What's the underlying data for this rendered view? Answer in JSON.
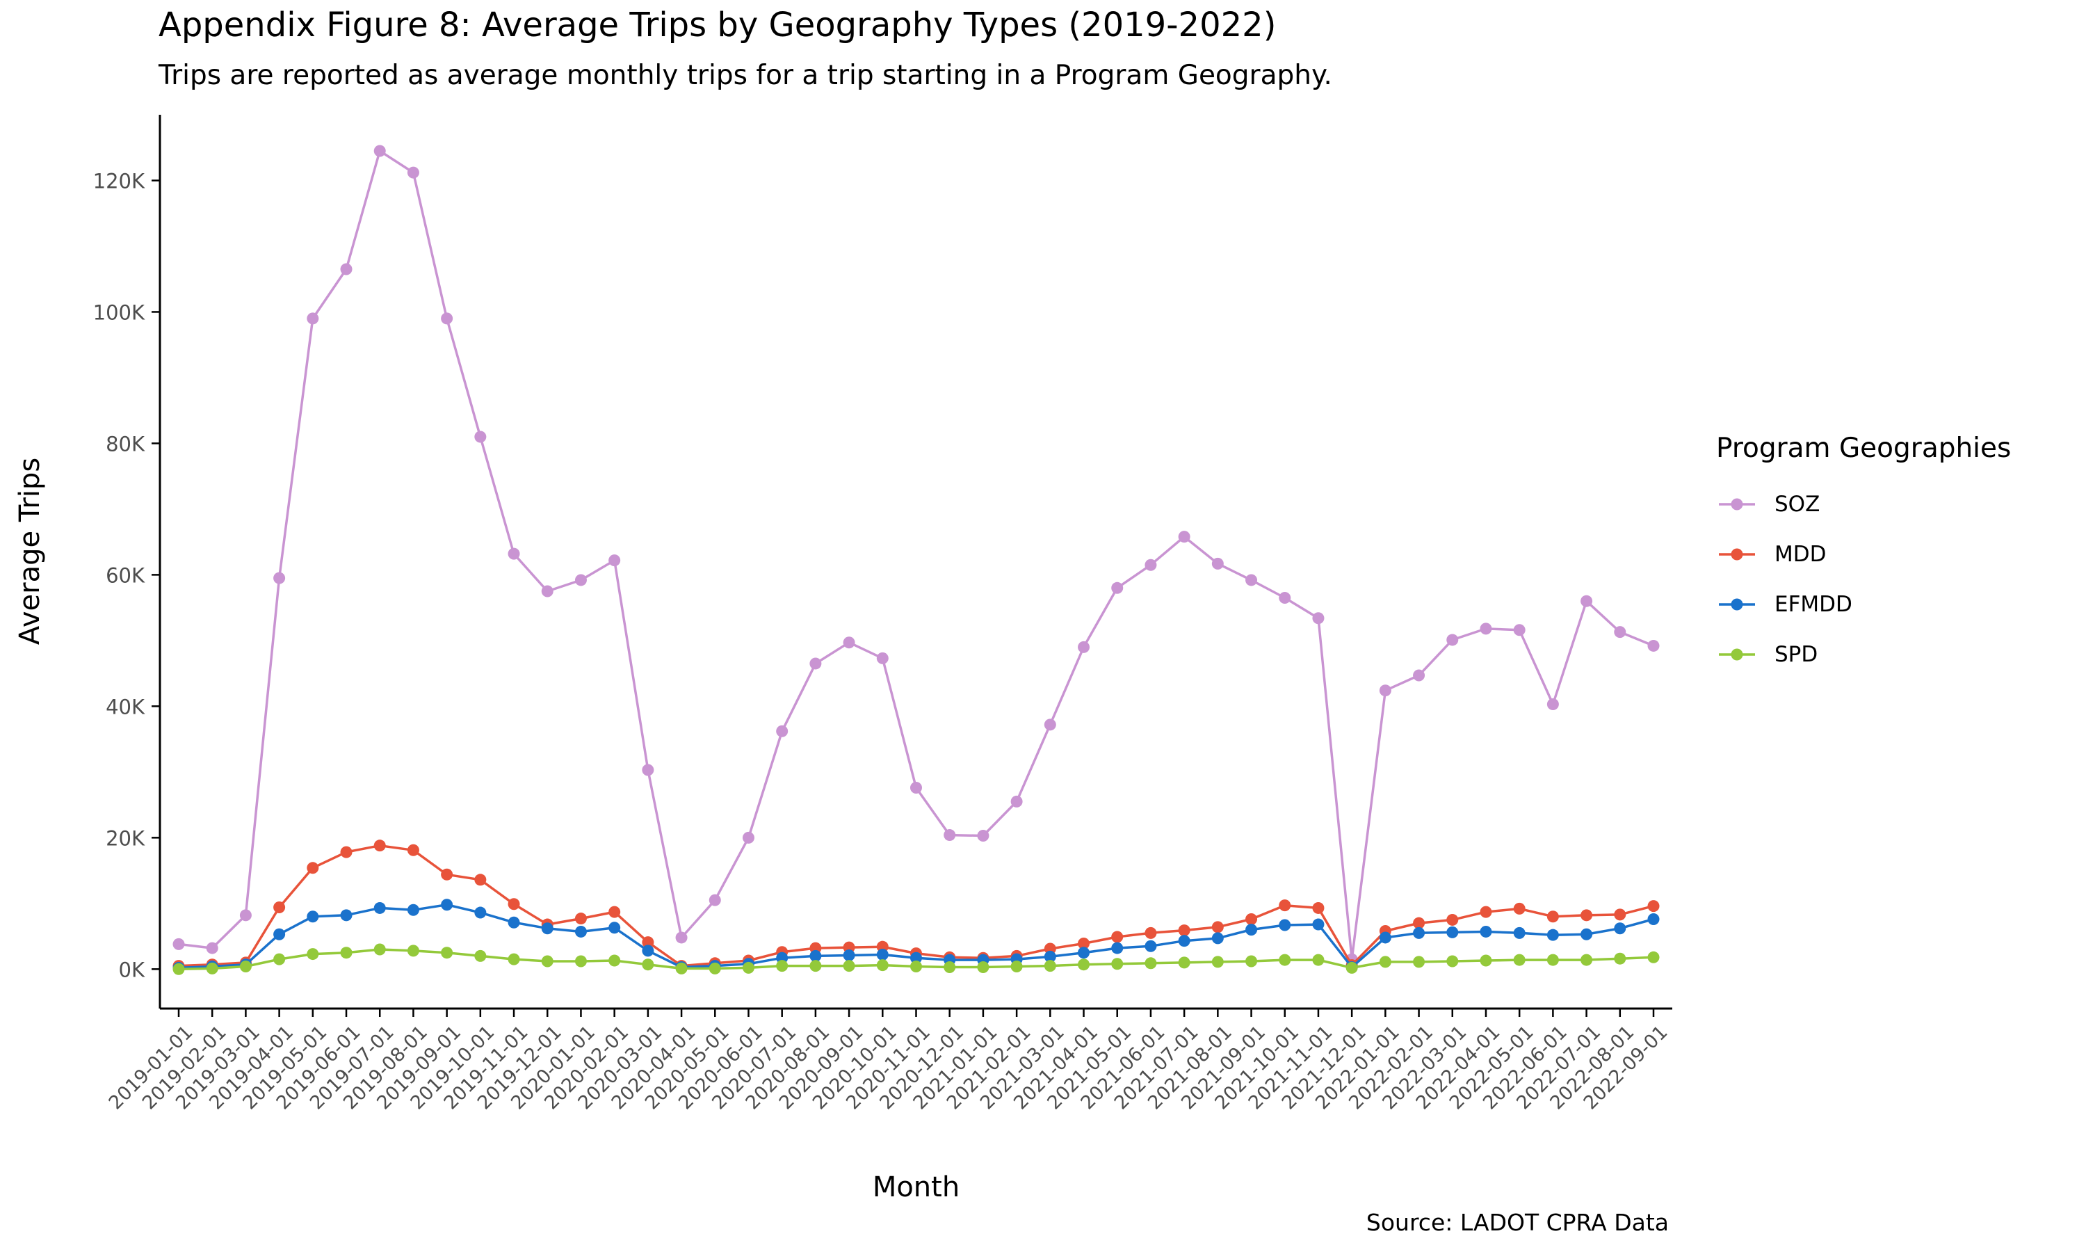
{
  "title": "Appendix Figure 8: Average Trips by Geography Types (2019-2022)",
  "subtitle": "Trips are reported as average monthly trips for a trip starting in a Program Geography.",
  "caption": "Source: LADOT CPRA Data",
  "legend": {
    "title": "Program Geographies",
    "items": [
      {
        "label": "SOZ",
        "color": "#c994d2"
      },
      {
        "label": "MDD",
        "color": "#e8533a"
      },
      {
        "label": "EFMDD",
        "color": "#1a72cc"
      },
      {
        "label": "SPD",
        "color": "#93c93a"
      }
    ]
  },
  "chart_data": {
    "type": "line",
    "xlabel": "Month",
    "ylabel": "Average Trips",
    "ylim": [
      -6000,
      130000
    ],
    "yticks": [
      0,
      20000,
      40000,
      60000,
      80000,
      100000,
      120000
    ],
    "ytick_labels": [
      "0K",
      "20K",
      "40K",
      "60K",
      "80K",
      "100K",
      "120K"
    ],
    "grid": false,
    "legend_position": "right",
    "categories": [
      "2019-01-01",
      "2019-02-01",
      "2019-03-01",
      "2019-04-01",
      "2019-05-01",
      "2019-06-01",
      "2019-07-01",
      "2019-08-01",
      "2019-09-01",
      "2019-10-01",
      "2019-11-01",
      "2019-12-01",
      "2020-01-01",
      "2020-02-01",
      "2020-03-01",
      "2020-04-01",
      "2020-05-01",
      "2020-06-01",
      "2020-07-01",
      "2020-08-01",
      "2020-09-01",
      "2020-10-01",
      "2020-11-01",
      "2020-12-01",
      "2021-01-01",
      "2021-02-01",
      "2021-03-01",
      "2021-04-01",
      "2021-05-01",
      "2021-06-01",
      "2021-07-01",
      "2021-08-01",
      "2021-09-01",
      "2021-10-01",
      "2021-11-01",
      "2021-12-01",
      "2022-01-01",
      "2022-02-01",
      "2022-03-01",
      "2022-04-01",
      "2022-05-01",
      "2022-06-01",
      "2022-07-01",
      "2022-08-01",
      "2022-09-01"
    ],
    "series": [
      {
        "name": "SOZ",
        "color": "#c994d2",
        "values": [
          3800,
          3200,
          8200,
          59500,
          99000,
          106500,
          124500,
          121200,
          99000,
          81000,
          63200,
          57500,
          59200,
          62200,
          30300,
          4800,
          10500,
          20000,
          36200,
          46500,
          49700,
          47300,
          27600,
          20400,
          20300,
          25500,
          37200,
          49000,
          58000,
          61500,
          65800,
          61700,
          59200,
          56500,
          53400,
          1500,
          42400,
          44700,
          50100,
          51800,
          51600,
          40300,
          56000,
          51300,
          49200
        ]
      },
      {
        "name": "MDD",
        "color": "#e8533a",
        "values": [
          500,
          700,
          1000,
          9400,
          15400,
          17800,
          18800,
          18100,
          14400,
          13600,
          9900,
          6800,
          7700,
          8700,
          4100,
          500,
          900,
          1300,
          2600,
          3200,
          3300,
          3400,
          2400,
          1800,
          1700,
          2000,
          3100,
          3900,
          4900,
          5500,
          5900,
          6400,
          7600,
          9700,
          9300,
          600,
          5800,
          7000,
          7500,
          8700,
          9200,
          8000,
          8200,
          8300,
          9600
        ]
      },
      {
        "name": "EFMDD",
        "color": "#1a72cc",
        "values": [
          200,
          400,
          700,
          5300,
          8000,
          8200,
          9300,
          9000,
          9800,
          8600,
          7100,
          6200,
          5700,
          6300,
          2800,
          300,
          500,
          800,
          1700,
          2000,
          2100,
          2200,
          1700,
          1400,
          1400,
          1500,
          1900,
          2500,
          3200,
          3500,
          4300,
          4700,
          6000,
          6700,
          6800,
          300,
          4800,
          5500,
          5600,
          5700,
          5500,
          5200,
          5300,
          6200,
          7600
        ]
      },
      {
        "name": "SPD",
        "color": "#93c93a",
        "values": [
          0,
          100,
          400,
          1500,
          2300,
          2500,
          3000,
          2800,
          2500,
          2000,
          1500,
          1200,
          1200,
          1300,
          700,
          100,
          100,
          200,
          500,
          500,
          500,
          600,
          400,
          300,
          300,
          400,
          500,
          700,
          800,
          900,
          1000,
          1100,
          1200,
          1400,
          1400,
          200,
          1100,
          1100,
          1200,
          1300,
          1400,
          1400,
          1400,
          1600,
          1800
        ]
      }
    ]
  }
}
